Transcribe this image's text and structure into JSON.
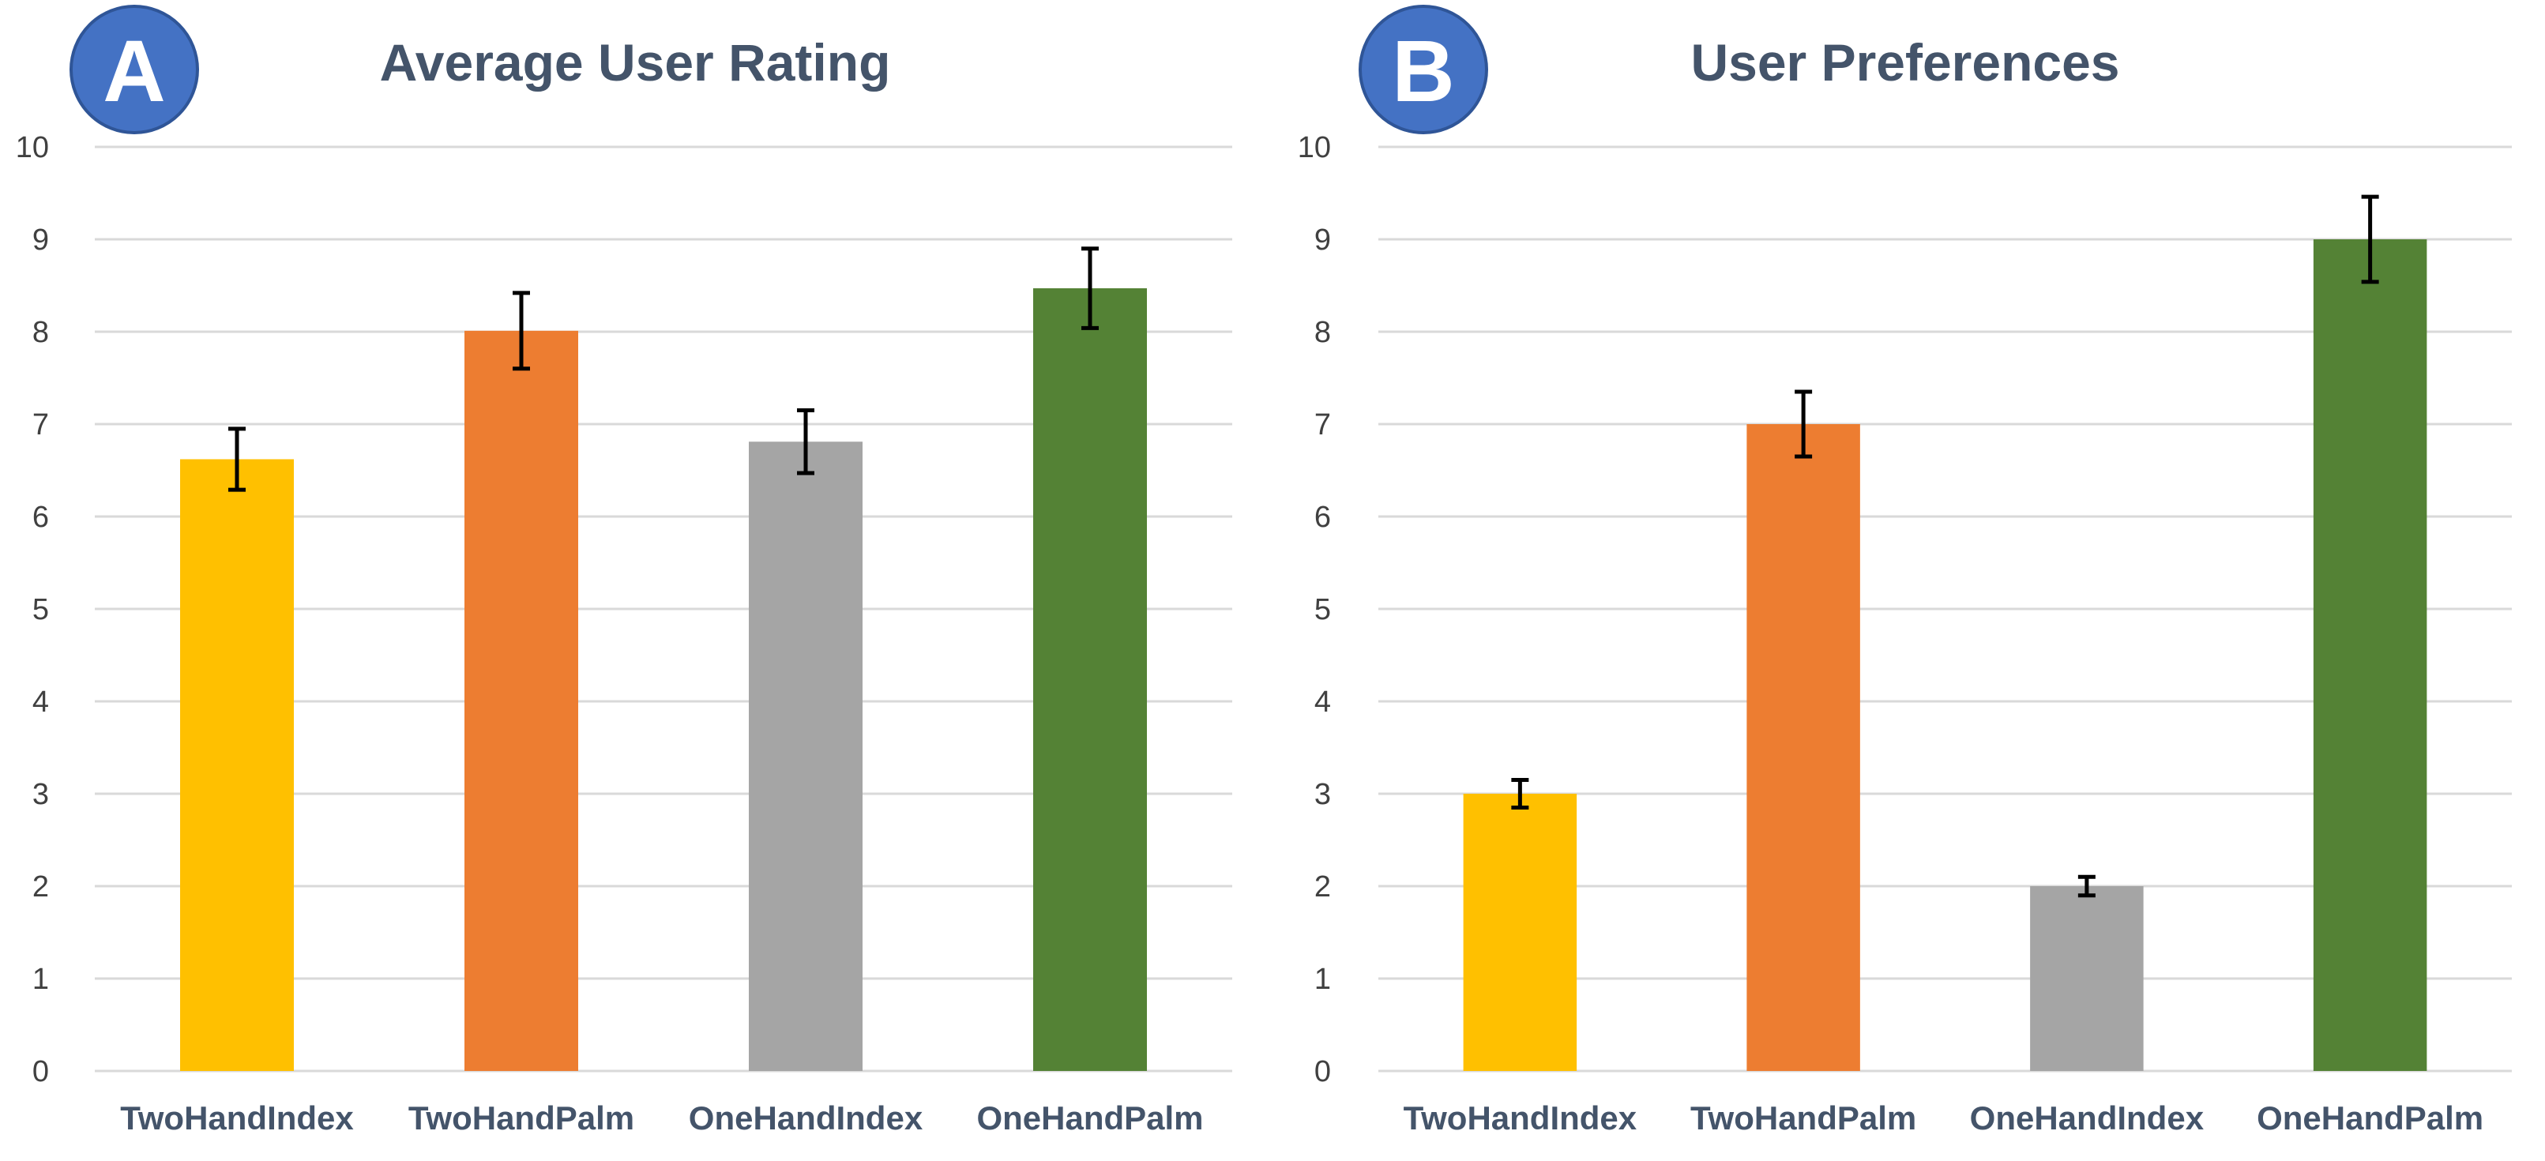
{
  "colors": {
    "badge_fill": "#4472c4",
    "badge_stroke": "#2f5597",
    "series": [
      "#ffc000",
      "#ed7d31",
      "#a5a5a5",
      "#548235"
    ]
  },
  "chart_data": [
    {
      "type": "bar",
      "badge": "A",
      "title": "Average User Rating",
      "categories": [
        "TwoHandIndex",
        "TwoHandPalm",
        "OneHandIndex",
        "OneHandPalm"
      ],
      "values": [
        6.62,
        8.01,
        6.81,
        8.47
      ],
      "error_bars": [
        0.33,
        0.41,
        0.34,
        0.43
      ],
      "ylim": [
        0,
        10
      ],
      "yticks": [
        0,
        1,
        2,
        3,
        4,
        5,
        6,
        7,
        8,
        9,
        10
      ],
      "xlabel": "",
      "ylabel": "",
      "grid": true
    },
    {
      "type": "bar",
      "badge": "B",
      "title": "User Preferences",
      "categories": [
        "TwoHandIndex",
        "TwoHandPalm",
        "OneHandIndex",
        "OneHandPalm"
      ],
      "values": [
        3,
        7,
        2,
        9
      ],
      "error_bars": [
        0.15,
        0.35,
        0.1,
        0.46
      ],
      "ylim": [
        0,
        10
      ],
      "yticks": [
        0,
        1,
        2,
        3,
        4,
        5,
        6,
        7,
        8,
        9,
        10
      ],
      "xlabel": "",
      "ylabel": "",
      "grid": true
    }
  ]
}
